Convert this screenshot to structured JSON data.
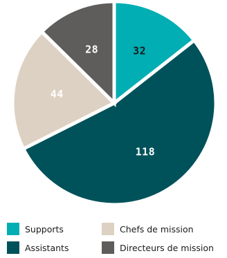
{
  "chart_data": {
    "type": "pie",
    "categories": [
      "Supports",
      "Assistants",
      "Chefs de mission",
      "Directeurs de mission"
    ],
    "values": [
      32,
      118,
      44,
      28
    ],
    "colors": [
      "#00aeb3",
      "#00525a",
      "#ddd1c3",
      "#5e5d5b"
    ],
    "label_colors": [
      "#1a1a1a",
      "#ffffff",
      "#ffffff",
      "#ffffff"
    ],
    "start_angle_deg": 0,
    "direction": "clockwise",
    "legend_position": "bottom"
  },
  "legend": {
    "items": [
      {
        "label": "Supports",
        "color": "#00aeb3"
      },
      {
        "label": "Chefs de mission",
        "color": "#ddd1c3"
      },
      {
        "label": "Assistants",
        "color": "#00525a"
      },
      {
        "label": "Directeurs de mission",
        "color": "#5e5d5b"
      }
    ]
  }
}
